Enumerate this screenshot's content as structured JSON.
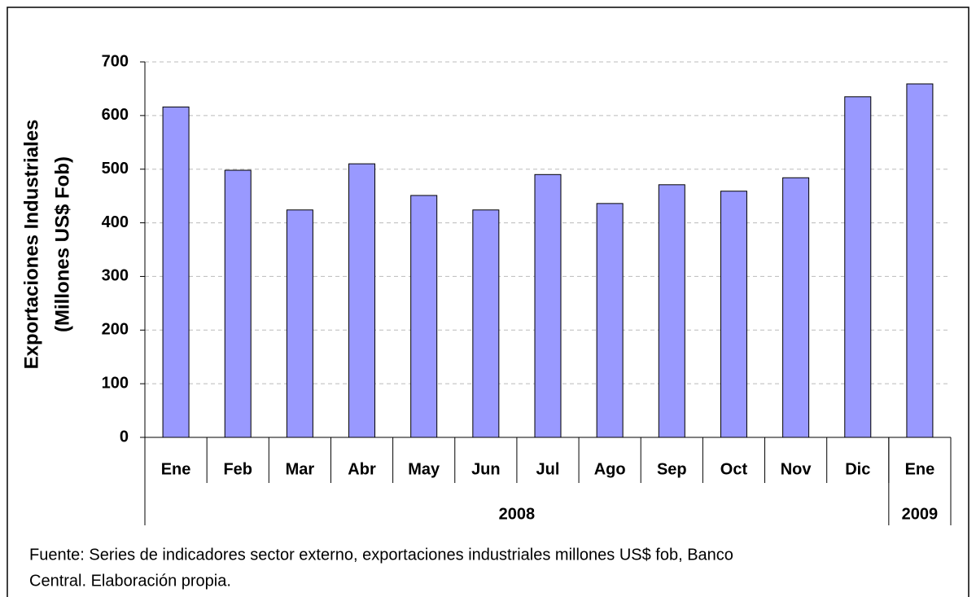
{
  "chart_data": {
    "type": "bar",
    "ylabel": [
      "Exportaciones Industriales",
      "(Millones US$ Fob)"
    ],
    "categories": [
      "Ene",
      "Feb",
      "Mar",
      "Abr",
      "May",
      "Jun",
      "Jul",
      "Ago",
      "Sep",
      "Oct",
      "Nov",
      "Dic",
      "Ene"
    ],
    "category_groups": [
      {
        "label": "2008",
        "size": 12
      },
      {
        "label": "2009",
        "size": 1
      }
    ],
    "values": [
      616,
      498,
      424,
      510,
      451,
      424,
      490,
      436,
      471,
      459,
      484,
      635,
      659
    ],
    "color": "#9999ff",
    "ylim": [
      0,
      700
    ],
    "yticks": [
      0,
      100,
      200,
      300,
      400,
      500,
      600,
      700
    ],
    "grid": true,
    "source": [
      "Fuente: Series de indicadores sector externo, exportaciones industriales millones US$ fob, Banco",
      "Central. Elaboración propia."
    ]
  }
}
